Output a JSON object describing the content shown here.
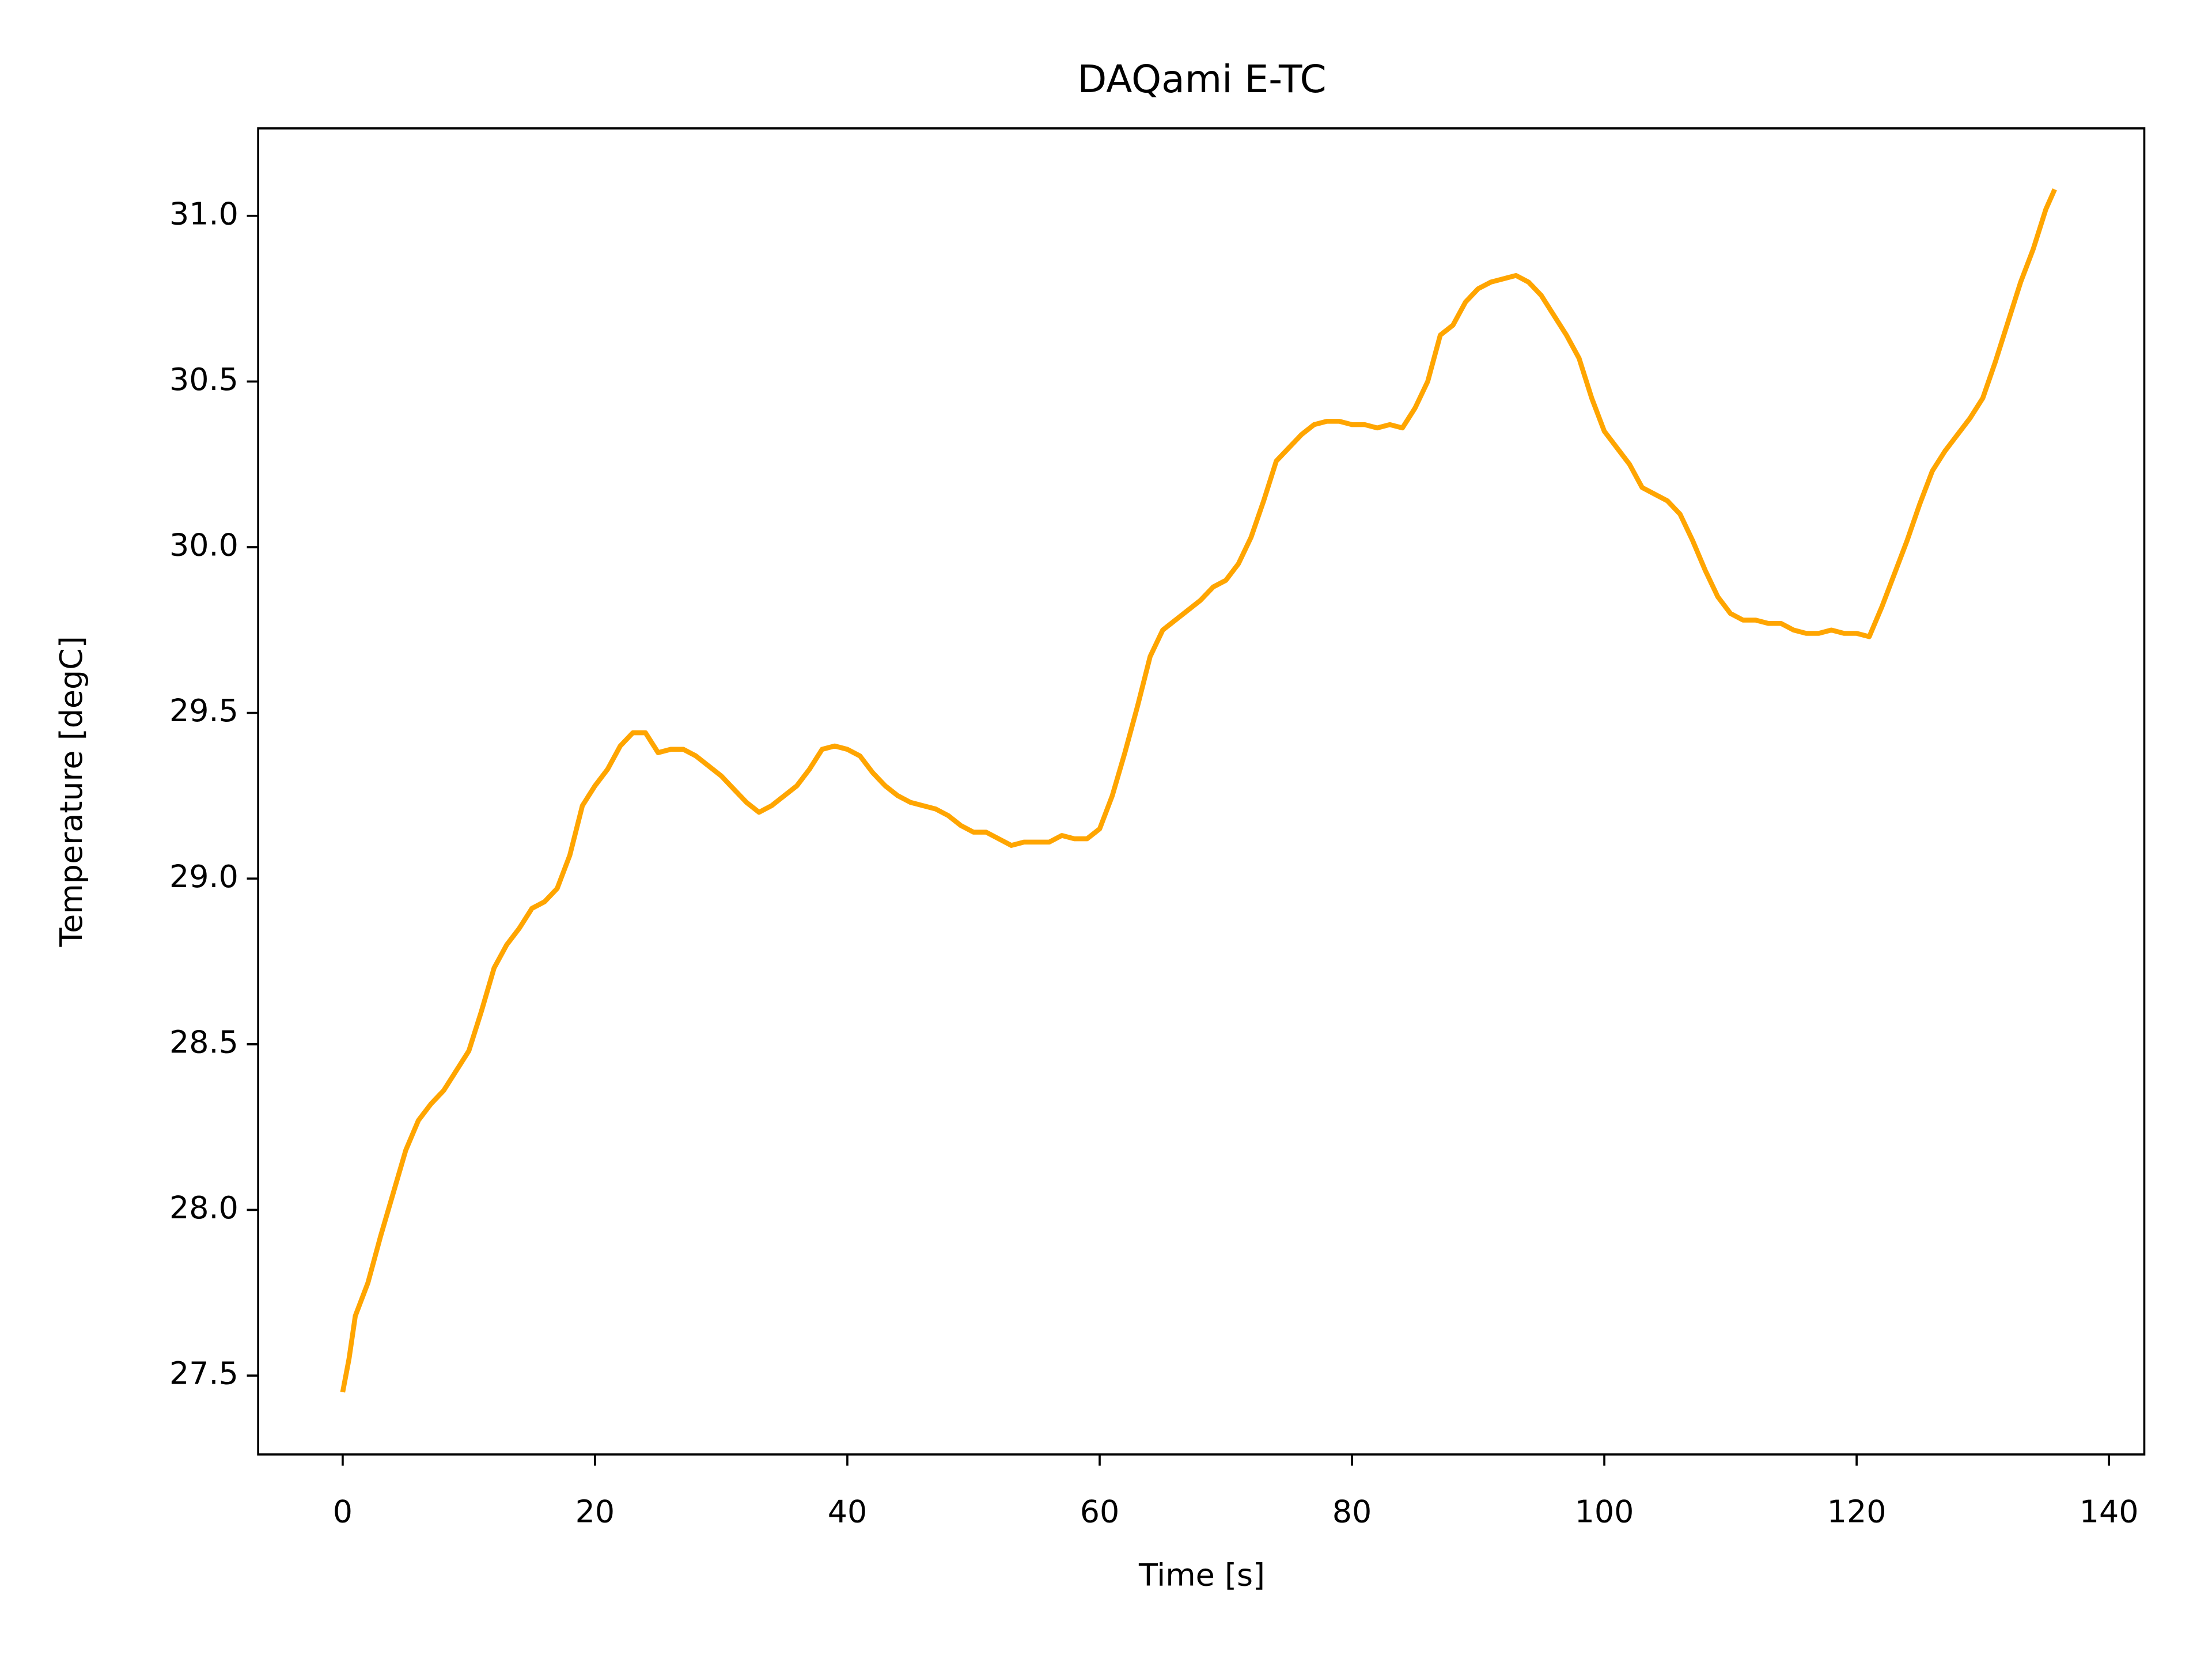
{
  "chart_data": {
    "type": "line",
    "title": "DAQami E-TC",
    "x_label": "Time [s]",
    "y_label": "Temperature [degC]",
    "x": [
      0,
      0.5,
      1,
      2,
      3,
      4,
      5,
      6,
      7,
      8,
      9,
      10,
      11,
      12,
      13,
      14,
      15,
      16,
      17,
      18,
      19,
      20,
      21,
      22,
      23,
      24,
      25,
      26,
      27,
      28,
      29,
      30,
      31,
      32,
      33,
      34,
      35,
      36,
      37,
      38,
      39,
      40,
      41,
      42,
      43,
      44,
      45,
      46,
      47,
      48,
      49,
      50,
      51,
      52,
      53,
      54,
      55,
      56,
      57,
      58,
      59,
      60,
      61,
      62,
      63,
      64,
      65,
      66,
      67,
      68,
      69,
      70,
      71,
      72,
      73,
      74,
      75,
      76,
      77,
      78,
      79,
      80,
      81,
      82,
      83,
      84,
      85,
      86,
      87,
      88,
      89,
      90,
      91,
      92,
      93,
      94,
      95,
      96,
      97,
      98,
      99,
      100,
      101,
      102,
      103,
      104,
      105,
      106,
      107,
      108,
      109,
      110,
      111,
      112,
      113,
      114,
      115,
      116,
      117,
      118,
      119,
      120,
      121,
      122,
      123,
      124,
      125,
      126,
      127,
      128,
      129,
      130,
      131,
      132,
      133,
      134,
      135,
      135.7
    ],
    "series": [
      {
        "name": "Temperature",
        "color": "#ffa500",
        "values": [
          27.45,
          27.55,
          27.68,
          27.78,
          27.92,
          28.05,
          28.18,
          28.27,
          28.32,
          28.36,
          28.42,
          28.48,
          28.6,
          28.73,
          28.8,
          28.85,
          28.91,
          28.93,
          28.97,
          29.07,
          29.22,
          29.28,
          29.33,
          29.4,
          29.44,
          29.44,
          29.38,
          29.39,
          29.39,
          29.37,
          29.34,
          29.31,
          29.27,
          29.23,
          29.2,
          29.22,
          29.25,
          29.28,
          29.33,
          29.39,
          29.4,
          29.39,
          29.37,
          29.32,
          29.28,
          29.25,
          29.23,
          29.22,
          29.21,
          29.19,
          29.16,
          29.14,
          29.14,
          29.12,
          29.1,
          29.11,
          29.11,
          29.11,
          29.13,
          29.12,
          29.12,
          29.15,
          29.25,
          29.38,
          29.52,
          29.67,
          29.75,
          29.78,
          29.81,
          29.84,
          29.88,
          29.9,
          29.95,
          30.03,
          30.14,
          30.26,
          30.3,
          30.34,
          30.37,
          30.38,
          30.38,
          30.37,
          30.37,
          30.36,
          30.37,
          30.36,
          30.42,
          30.5,
          30.64,
          30.67,
          30.74,
          30.78,
          30.8,
          30.81,
          30.82,
          30.8,
          30.76,
          30.7,
          30.64,
          30.57,
          30.45,
          30.35,
          30.3,
          30.25,
          30.18,
          30.16,
          30.14,
          30.1,
          30.02,
          29.93,
          29.85,
          29.8,
          29.78,
          29.78,
          29.77,
          29.77,
          29.75,
          29.74,
          29.74,
          29.75,
          29.74,
          29.74,
          29.73,
          29.82,
          29.92,
          30.02,
          30.13,
          30.23,
          30.29,
          30.34,
          30.39,
          30.45,
          30.56,
          30.68,
          30.8,
          30.9,
          31.02,
          31.08
        ]
      }
    ],
    "xlim": [
      -6.7,
      142.8
    ],
    "xticks": [
      0,
      20,
      40,
      60,
      80,
      100,
      120,
      140
    ],
    "ylim": [
      27.262,
      31.264
    ],
    "yticks": [
      27.5,
      {
        "value": 28,
        "label": "28.0"
      },
      28.5,
      {
        "value": 29,
        "label": "29.0"
      },
      29.5,
      {
        "value": 30,
        "label": "30.0"
      },
      30.5,
      {
        "value": 31,
        "label": "31.0"
      }
    ],
    "grid": false
  }
}
